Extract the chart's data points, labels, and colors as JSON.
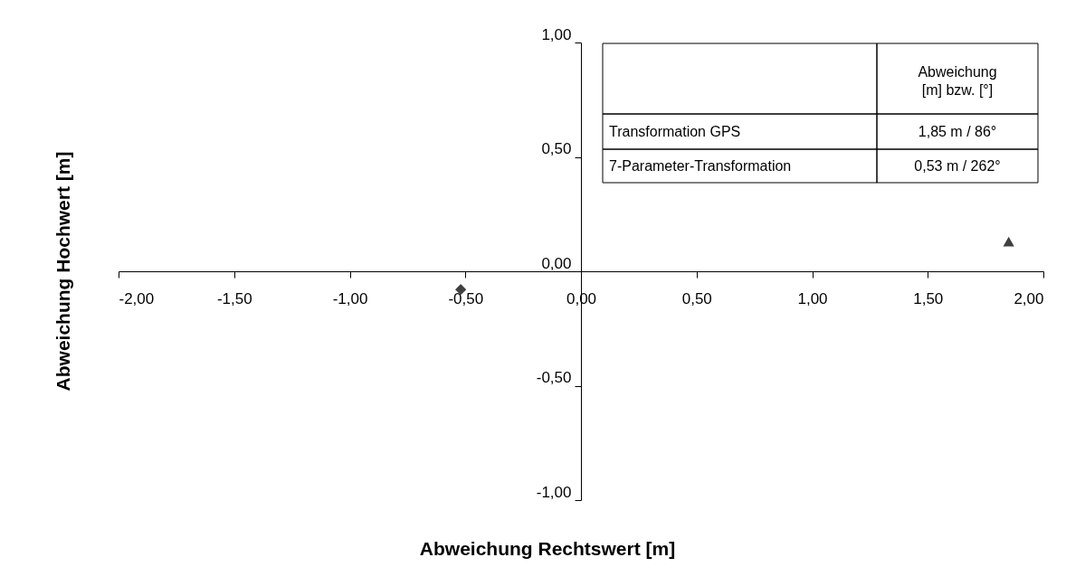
{
  "chart_data": {
    "type": "scatter",
    "xlabel": "Abweichung Rechtswert [m]",
    "ylabel": "Abweichung Hochwert [m]",
    "xlim": [
      -2,
      2
    ],
    "ylim": [
      -1,
      1
    ],
    "xticks": [
      {
        "value": -2,
        "label": "-2,00"
      },
      {
        "value": -1.5,
        "label": "-1,50"
      },
      {
        "value": -1,
        "label": "-1,00"
      },
      {
        "value": -0.5,
        "label": "-0,50"
      },
      {
        "value": 0,
        "label": "0,00"
      },
      {
        "value": 0.5,
        "label": "0,50"
      },
      {
        "value": 1,
        "label": "1,00"
      },
      {
        "value": 1.5,
        "label": "1,50"
      },
      {
        "value": 2,
        "label": "2,00"
      }
    ],
    "yticks": [
      {
        "value": -1,
        "label": "-1,00"
      },
      {
        "value": -0.5,
        "label": "-0,50"
      },
      {
        "value": 0,
        "label": "0,00"
      },
      {
        "value": 0.5,
        "label": "0,50"
      },
      {
        "value": 1,
        "label": "1,00"
      }
    ],
    "series": [
      {
        "color": "#404040",
        "marker": "triangle",
        "x": [
          1.85
        ],
        "values": [
          0.13
        ]
      },
      {
        "color": "#404040",
        "marker": "diamond",
        "x": [
          -0.52
        ],
        "values": [
          -0.08
        ]
      }
    ],
    "annotations": [
      "Abweichung [m] bzw. [°]",
      "Transformation GPS",
      "1,85 m / 86°",
      "7-Parameter-Transformation",
      "0,53 m / 262°"
    ]
  }
}
